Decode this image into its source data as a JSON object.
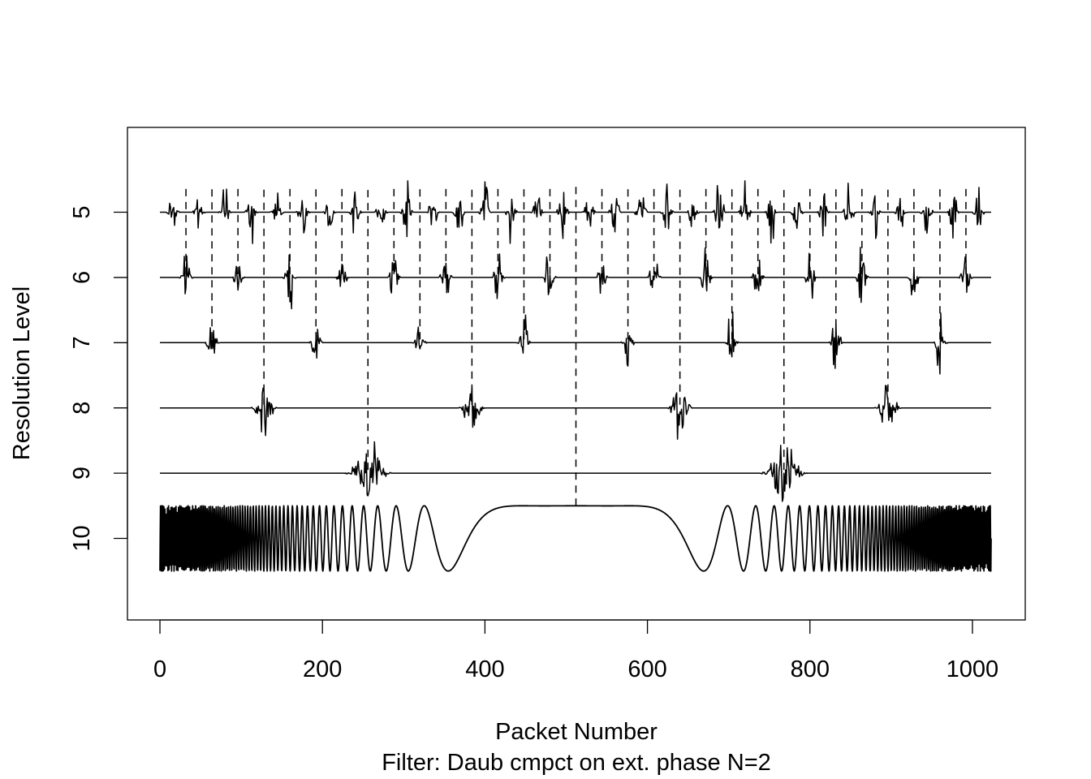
{
  "chart_data": {
    "type": "line",
    "title": "",
    "xlabel": "Packet Number",
    "subtitle": "Filter:  Daub cmpct on ext. phase N=2",
    "ylabel": "Resolution Level",
    "xlim": [
      -40,
      1065
    ],
    "ylim": [
      3.7,
      11.25
    ],
    "y_reversed": true,
    "grid": false,
    "x_ticks": [
      {
        "value": 0,
        "label": "0"
      },
      {
        "value": 200,
        "label": "200"
      },
      {
        "value": 400,
        "label": "400"
      },
      {
        "value": 600,
        "label": "600"
      },
      {
        "value": 800,
        "label": "800"
      },
      {
        "value": 1000,
        "label": "1000"
      }
    ],
    "y_ticks": [
      {
        "value": 5,
        "label": "5"
      },
      {
        "value": 6,
        "label": "6"
      },
      {
        "value": 7,
        "label": "7"
      },
      {
        "value": 8,
        "label": "8"
      },
      {
        "value": 9,
        "label": "9"
      },
      {
        "value": 10,
        "label": "10"
      }
    ],
    "x_range": [
      0,
      1023
    ],
    "series": [
      {
        "level": 10,
        "kind": "signal",
        "description_values": {
          "min_x": 307,
          "max_x": 171
        }
      },
      {
        "level": 9,
        "kind": "coefficients",
        "packets": 2,
        "bursts_at": [
          256,
          768
        ]
      },
      {
        "level": 8,
        "kind": "coefficients",
        "packets": 4,
        "bursts_at": [
          128,
          384,
          640,
          896
        ]
      },
      {
        "level": 7,
        "kind": "coefficients",
        "packets": 8,
        "bursts_at": [
          64,
          192,
          320,
          448,
          576,
          704,
          832,
          960
        ]
      },
      {
        "level": 6,
        "kind": "coefficients",
        "packets": 16,
        "bursts_at": [
          32,
          96,
          160,
          224,
          288,
          352,
          416,
          480,
          544,
          608,
          672,
          736,
          800,
          864,
          928,
          992
        ]
      },
      {
        "level": 5,
        "kind": "coefficients",
        "packets": 32,
        "bursts_at": [
          16,
          48,
          80,
          112,
          144,
          176,
          208,
          240,
          272,
          304,
          336,
          368,
          400,
          432,
          464,
          496,
          528,
          560,
          592,
          624,
          656,
          688,
          720,
          752,
          784,
          816,
          848,
          880,
          912,
          944,
          976,
          1008
        ]
      }
    ],
    "packet_dividers": [
      {
        "x": 512,
        "from_level": 9.5,
        "to_level": 4.6
      },
      {
        "x": 256,
        "from_level": 8.95,
        "to_level": 4.6
      },
      {
        "x": 768,
        "from_level": 8.95,
        "to_level": 4.6
      },
      {
        "x": 128,
        "from_level": 7.95,
        "to_level": 4.6
      },
      {
        "x": 384,
        "from_level": 7.95,
        "to_level": 4.6
      },
      {
        "x": 640,
        "from_level": 7.95,
        "to_level": 4.6
      },
      {
        "x": 896,
        "from_level": 7.95,
        "to_level": 4.6
      },
      {
        "x": 64,
        "from_level": 6.95,
        "to_level": 4.6
      },
      {
        "x": 192,
        "from_level": 6.95,
        "to_level": 4.6
      },
      {
        "x": 320,
        "from_level": 6.95,
        "to_level": 4.6
      },
      {
        "x": 448,
        "from_level": 6.95,
        "to_level": 4.6
      },
      {
        "x": 576,
        "from_level": 6.95,
        "to_level": 4.6
      },
      {
        "x": 704,
        "from_level": 6.95,
        "to_level": 4.6
      },
      {
        "x": 832,
        "from_level": 6.95,
        "to_level": 4.6
      },
      {
        "x": 960,
        "from_level": 6.95,
        "to_level": 4.6
      },
      {
        "x": 32,
        "from_level": 5.95,
        "to_level": 4.6
      },
      {
        "x": 96,
        "from_level": 5.95,
        "to_level": 4.6
      },
      {
        "x": 160,
        "from_level": 5.95,
        "to_level": 4.6
      },
      {
        "x": 224,
        "from_level": 5.95,
        "to_level": 4.6
      },
      {
        "x": 288,
        "from_level": 5.95,
        "to_level": 4.6
      },
      {
        "x": 352,
        "from_level": 5.95,
        "to_level": 4.6
      },
      {
        "x": 416,
        "from_level": 5.95,
        "to_level": 4.6
      },
      {
        "x": 480,
        "from_level": 5.95,
        "to_level": 4.6
      },
      {
        "x": 544,
        "from_level": 5.95,
        "to_level": 4.6
      },
      {
        "x": 608,
        "from_level": 5.95,
        "to_level": 4.6
      },
      {
        "x": 672,
        "from_level": 5.95,
        "to_level": 4.6
      },
      {
        "x": 736,
        "from_level": 5.95,
        "to_level": 4.6
      },
      {
        "x": 800,
        "from_level": 5.95,
        "to_level": 4.6
      },
      {
        "x": 864,
        "from_level": 5.95,
        "to_level": 4.6
      },
      {
        "x": 928,
        "from_level": 5.95,
        "to_level": 4.6
      },
      {
        "x": 992,
        "from_level": 5.95,
        "to_level": 4.6
      }
    ],
    "colors": {
      "line": "#000000",
      "background": "#ffffff"
    }
  }
}
